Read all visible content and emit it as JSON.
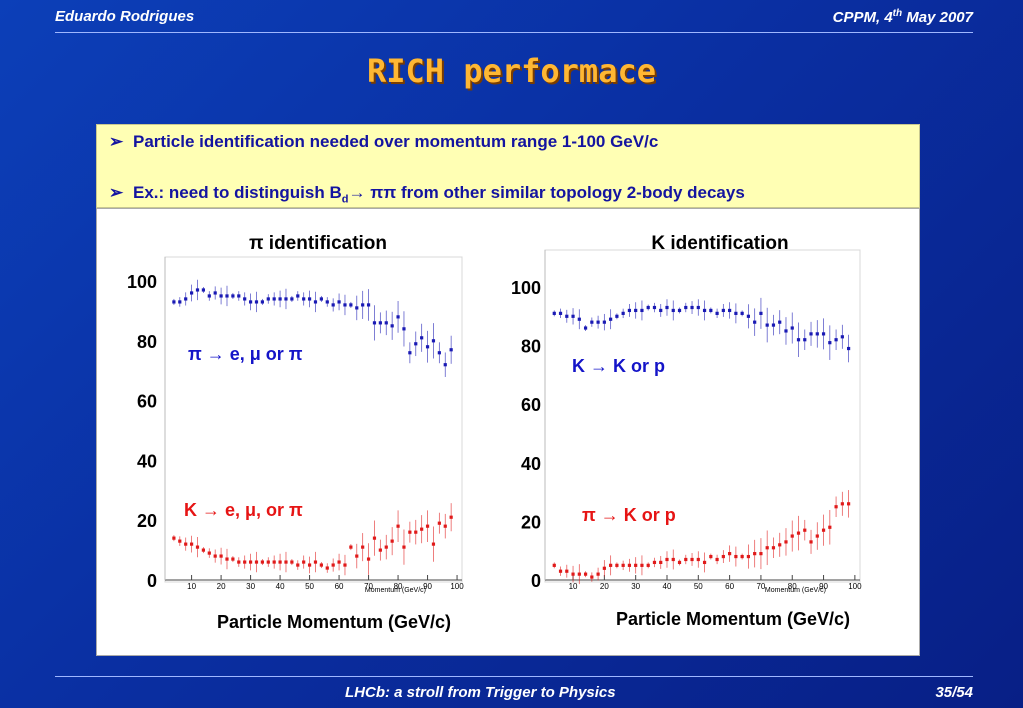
{
  "header": {
    "author": "Eduardo Rodrigues",
    "venue": "CPPM, 4",
    "venue_sup": "th",
    "venue_rest": " May 2007"
  },
  "title": "RICH performace",
  "bullets": [
    {
      "mark": "➢",
      "text": "Particle identification needed over momentum range 1-100 GeV/c"
    },
    {
      "mark": "➢",
      "text_pre": "Ex.: need to distinguish B",
      "text_sub": "d",
      "text_arrow": "→ ππ",
      "text_post": " from other similar topology 2-body decays"
    }
  ],
  "footer": {
    "talk": "LHCb: a stroll from Trigger to Physics",
    "page": "35/54"
  },
  "colors": {
    "efficiency": "#1a1ab4",
    "misid": "#e01a1a",
    "accent": "#ffb733",
    "label_blue": "#1414c8",
    "label_red": "#e61414"
  },
  "chart_data": [
    {
      "type": "scatter",
      "title": "π identification",
      "xlabel": "Particle Momentum (GeV/c)",
      "small_xlabel": "Momentum (GeV/c)",
      "xlim": [
        2,
        101
      ],
      "ylim": [
        0,
        100
      ],
      "xticks": [
        10,
        20,
        30,
        40,
        50,
        60,
        70,
        80,
        90,
        100
      ],
      "yticks": [
        0,
        20,
        40,
        60,
        80,
        100
      ],
      "series": [
        {
          "name": "π → e, μ or π",
          "color": "#1a1ab4",
          "x": [
            4,
            6,
            8,
            10,
            12,
            14,
            16,
            18,
            20,
            22,
            24,
            26,
            28,
            30,
            32,
            34,
            36,
            38,
            40,
            42,
            44,
            46,
            48,
            50,
            52,
            54,
            56,
            58,
            60,
            62,
            64,
            66,
            68,
            70,
            72,
            74,
            76,
            78,
            80,
            82,
            84,
            86,
            88,
            90,
            92,
            94,
            96,
            98
          ],
          "y": [
            93,
            93,
            94,
            96,
            97,
            97,
            95,
            96,
            95,
            95,
            95,
            95,
            94,
            93,
            93,
            93,
            94,
            94,
            94,
            94,
            94,
            95,
            94,
            94,
            93,
            94,
            93,
            92,
            93,
            92,
            92,
            91,
            92,
            92,
            86,
            86,
            86,
            85,
            88,
            84,
            76,
            79,
            81,
            78,
            80,
            76,
            72,
            77
          ]
        },
        {
          "name": "K → e, μ, or π",
          "color": "#e01a1a",
          "x": [
            4,
            6,
            8,
            10,
            12,
            14,
            16,
            18,
            20,
            22,
            24,
            26,
            28,
            30,
            32,
            34,
            36,
            38,
            40,
            42,
            44,
            46,
            48,
            50,
            52,
            54,
            56,
            58,
            60,
            62,
            64,
            66,
            68,
            70,
            72,
            74,
            76,
            78,
            80,
            82,
            84,
            86,
            88,
            90,
            92,
            94,
            96,
            98
          ],
          "y": [
            14,
            13,
            12,
            12,
            11,
            10,
            9,
            8,
            8,
            7,
            7,
            6,
            6,
            6,
            6,
            6,
            6,
            6,
            6,
            6,
            6,
            5,
            6,
            5,
            6,
            5,
            4,
            5,
            6,
            5,
            11,
            8,
            11,
            7,
            14,
            10,
            11,
            13,
            18,
            11,
            16,
            16,
            17,
            18,
            12,
            19,
            18,
            21
          ]
        }
      ]
    },
    {
      "type": "scatter",
      "title": "K identification",
      "xlabel": "Particle Momentum (GeV/c)",
      "small_xlabel": "Momentum (GeV/c)",
      "xlim": [
        2,
        101
      ],
      "ylim": [
        0,
        100
      ],
      "xticks": [
        10,
        20,
        30,
        40,
        50,
        60,
        70,
        80,
        90,
        100
      ],
      "yticks": [
        0,
        20,
        40,
        60,
        80,
        100
      ],
      "series": [
        {
          "name": "K → K or p",
          "color": "#1a1ab4",
          "x": [
            4,
            6,
            8,
            10,
            12,
            14,
            16,
            18,
            20,
            22,
            24,
            26,
            28,
            30,
            32,
            34,
            36,
            38,
            40,
            42,
            44,
            46,
            48,
            50,
            52,
            54,
            56,
            58,
            60,
            62,
            64,
            66,
            68,
            70,
            72,
            74,
            76,
            78,
            80,
            82,
            84,
            86,
            88,
            90,
            92,
            94,
            96,
            98
          ],
          "y": [
            91,
            91,
            90,
            90,
            89,
            86,
            88,
            88,
            88,
            89,
            90,
            91,
            92,
            92,
            92,
            93,
            93,
            92,
            93,
            92,
            92,
            93,
            93,
            93,
            92,
            92,
            91,
            92,
            92,
            91,
            91,
            90,
            88,
            91,
            87,
            87,
            88,
            85,
            86,
            82,
            82,
            84,
            84,
            84,
            81,
            82,
            83,
            79
          ]
        },
        {
          "name": "π → K or p",
          "color": "#e01a1a",
          "x": [
            4,
            6,
            8,
            10,
            12,
            14,
            16,
            18,
            20,
            22,
            24,
            26,
            28,
            30,
            32,
            34,
            36,
            38,
            40,
            42,
            44,
            46,
            48,
            50,
            52,
            54,
            56,
            58,
            60,
            62,
            64,
            66,
            68,
            70,
            72,
            74,
            76,
            78,
            80,
            82,
            84,
            86,
            88,
            90,
            92,
            94,
            96,
            98
          ],
          "y": [
            5,
            3,
            3,
            2,
            2,
            2,
            1,
            2,
            4,
            5,
            5,
            5,
            5,
            5,
            5,
            5,
            6,
            6,
            7,
            7,
            6,
            7,
            7,
            7,
            6,
            8,
            7,
            8,
            9,
            8,
            8,
            8,
            9,
            9,
            11,
            11,
            12,
            13,
            15,
            16,
            17,
            13,
            15,
            17,
            18,
            25,
            26,
            26
          ]
        }
      ]
    }
  ],
  "legend_labels": [
    {
      "text": "π → e, μ or π"
    },
    {
      "text": "K → e, μ, or π"
    },
    {
      "text": "K → K or p"
    },
    {
      "text": "π → K or p"
    }
  ]
}
